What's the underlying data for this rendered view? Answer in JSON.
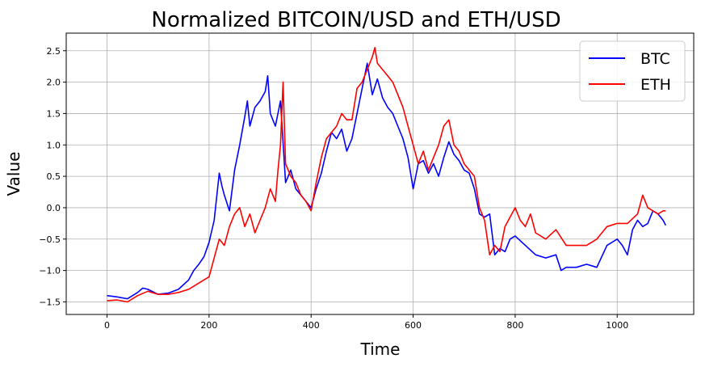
{
  "chart_data": {
    "type": "line",
    "title": "Normalized BITCOIN/USD and ETH/USD",
    "xlabel": "Time",
    "ylabel": "Value",
    "xlim": [
      -80,
      1150
    ],
    "ylim": [
      -1.7,
      2.78
    ],
    "xticks": [
      0,
      200,
      400,
      600,
      800,
      1000
    ],
    "yticks": [
      -1.5,
      -1.0,
      -0.5,
      0.0,
      0.5,
      1.0,
      1.5,
      2.0,
      2.5
    ],
    "xtick_labels": [
      "0",
      "200",
      "400",
      "600",
      "800",
      "1000"
    ],
    "ytick_labels": [
      "−1.5",
      "−1.0",
      "−0.5",
      "0.0",
      "0.5",
      "1.0",
      "1.5",
      "2.0",
      "2.5"
    ],
    "grid": true,
    "legend_position": "top-right",
    "series": [
      {
        "name": "BTC",
        "color": "#0000ff",
        "x": [
          0,
          20,
          40,
          60,
          70,
          80,
          100,
          120,
          140,
          160,
          170,
          180,
          190,
          200,
          210,
          220,
          225,
          230,
          240,
          250,
          260,
          270,
          275,
          280,
          290,
          300,
          310,
          315,
          320,
          330,
          340,
          350,
          360,
          370,
          380,
          390,
          400,
          410,
          420,
          430,
          440,
          450,
          460,
          470,
          480,
          490,
          500,
          510,
          520,
          530,
          540,
          550,
          560,
          570,
          580,
          590,
          600,
          610,
          620,
          630,
          640,
          650,
          660,
          670,
          680,
          690,
          700,
          710,
          720,
          730,
          740,
          750,
          760,
          770,
          780,
          790,
          800,
          820,
          840,
          860,
          880,
          890,
          900,
          920,
          940,
          960,
          980,
          1000,
          1010,
          1020,
          1030,
          1040,
          1050,
          1060,
          1070,
          1080,
          1090,
          1095
        ],
        "values": [
          -1.4,
          -1.42,
          -1.45,
          -1.35,
          -1.28,
          -1.3,
          -1.38,
          -1.36,
          -1.3,
          -1.15,
          -1.0,
          -0.9,
          -0.78,
          -0.55,
          -0.2,
          0.55,
          0.35,
          0.2,
          -0.05,
          0.6,
          1.0,
          1.45,
          1.7,
          1.3,
          1.6,
          1.7,
          1.85,
          2.1,
          1.5,
          1.3,
          1.7,
          0.4,
          0.6,
          0.3,
          0.2,
          0.1,
          0.0,
          0.3,
          0.55,
          0.9,
          1.2,
          1.1,
          1.25,
          0.9,
          1.1,
          1.5,
          1.9,
          2.3,
          1.8,
          2.05,
          1.75,
          1.6,
          1.5,
          1.3,
          1.1,
          0.8,
          0.3,
          0.7,
          0.75,
          0.55,
          0.7,
          0.5,
          0.8,
          1.05,
          0.85,
          0.75,
          0.6,
          0.55,
          0.3,
          -0.1,
          -0.15,
          -0.1,
          -0.75,
          -0.65,
          -0.7,
          -0.5,
          -0.45,
          -0.6,
          -0.75,
          -0.8,
          -0.75,
          -1.0,
          -0.95,
          -0.95,
          -0.9,
          -0.95,
          -0.6,
          -0.5,
          -0.6,
          -0.75,
          -0.35,
          -0.2,
          -0.3,
          -0.25,
          -0.05,
          -0.1,
          -0.2,
          -0.28
        ]
      },
      {
        "name": "ETH",
        "color": "#ff0000",
        "x": [
          0,
          20,
          40,
          60,
          80,
          100,
          120,
          140,
          160,
          180,
          200,
          210,
          220,
          230,
          240,
          250,
          260,
          270,
          280,
          290,
          300,
          310,
          320,
          330,
          335,
          340,
          345,
          350,
          360,
          370,
          380,
          390,
          400,
          410,
          420,
          430,
          440,
          450,
          460,
          470,
          480,
          490,
          500,
          510,
          520,
          525,
          530,
          540,
          550,
          560,
          570,
          580,
          590,
          600,
          610,
          620,
          630,
          640,
          650,
          660,
          670,
          680,
          690,
          700,
          710,
          720,
          730,
          740,
          750,
          760,
          770,
          780,
          790,
          800,
          810,
          820,
          830,
          840,
          860,
          880,
          900,
          920,
          940,
          960,
          980,
          1000,
          1020,
          1040,
          1050,
          1060,
          1070,
          1080,
          1090,
          1095
        ],
        "values": [
          -1.48,
          -1.47,
          -1.5,
          -1.4,
          -1.33,
          -1.38,
          -1.38,
          -1.35,
          -1.3,
          -1.2,
          -1.1,
          -0.8,
          -0.5,
          -0.6,
          -0.3,
          -0.1,
          0.0,
          -0.3,
          -0.1,
          -0.4,
          -0.2,
          0.0,
          0.3,
          0.1,
          0.6,
          1.0,
          2.0,
          0.7,
          0.5,
          0.4,
          0.2,
          0.1,
          -0.05,
          0.4,
          0.8,
          1.1,
          1.2,
          1.3,
          1.5,
          1.4,
          1.4,
          1.9,
          2.0,
          2.2,
          2.4,
          2.55,
          2.3,
          2.2,
          2.1,
          2.0,
          1.8,
          1.6,
          1.3,
          1.0,
          0.7,
          0.9,
          0.6,
          0.8,
          1.0,
          1.3,
          1.4,
          1.0,
          0.9,
          0.7,
          0.6,
          0.5,
          0.0,
          -0.2,
          -0.75,
          -0.6,
          -0.7,
          -0.3,
          -0.15,
          0.0,
          -0.2,
          -0.3,
          -0.1,
          -0.4,
          -0.5,
          -0.35,
          -0.6,
          -0.6,
          -0.6,
          -0.5,
          -0.3,
          -0.25,
          -0.25,
          -0.1,
          0.2,
          0.0,
          -0.05,
          -0.1,
          -0.05,
          -0.05
        ]
      }
    ]
  }
}
